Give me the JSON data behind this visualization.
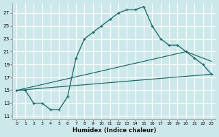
{
  "xlabel": "Humidex (Indice chaleur)",
  "bg_color": "#cce8ea",
  "grid_color": "#b0d8dc",
  "line_color": "#1f6b6b",
  "xlim": [
    -0.5,
    23.5
  ],
  "ylim": [
    10.5,
    28.5
  ],
  "yticks": [
    11,
    13,
    15,
    17,
    19,
    21,
    23,
    25,
    27
  ],
  "xticks": [
    0,
    1,
    2,
    3,
    4,
    5,
    6,
    7,
    8,
    9,
    10,
    11,
    12,
    13,
    14,
    15,
    16,
    17,
    18,
    19,
    20,
    21,
    22,
    23
  ],
  "curve_x": [
    0,
    1,
    2,
    3,
    4,
    5,
    6,
    7,
    8,
    9,
    10,
    11,
    12,
    13,
    14,
    15,
    16,
    17,
    18,
    19,
    20,
    21,
    22,
    23
  ],
  "curve_y": [
    15,
    15,
    13,
    13,
    12,
    12,
    14,
    20,
    23,
    24,
    25,
    26,
    27,
    27.5,
    27.5,
    28,
    25,
    23,
    22,
    22,
    21,
    20,
    19,
    17.5
  ],
  "line1_x": [
    0,
    23
  ],
  "line1_y": [
    15,
    17.5
  ],
  "line2_x": [
    0,
    20,
    23
  ],
  "line2_y": [
    15,
    21,
    19.5
  ]
}
